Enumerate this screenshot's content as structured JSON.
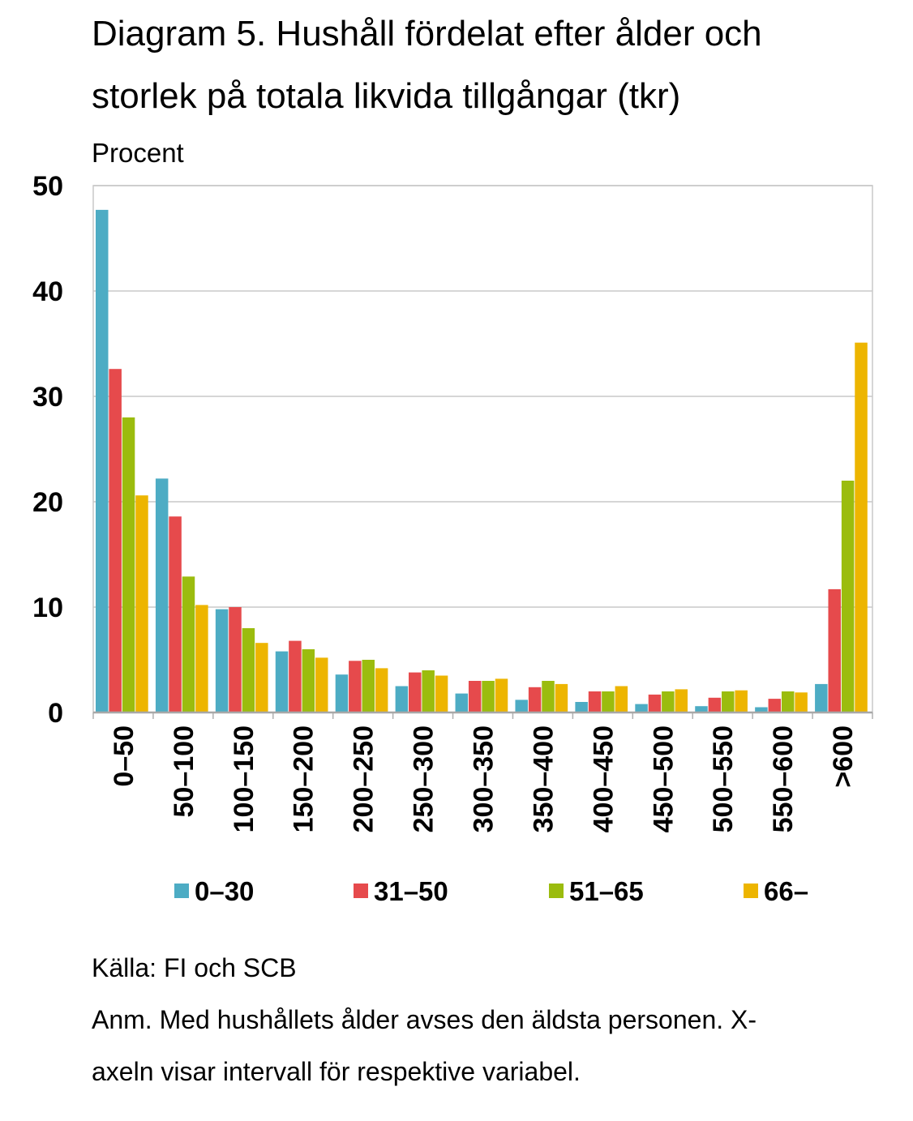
{
  "title_line1": "Diagram 5. Hushåll fördelat efter ålder och",
  "title_line2": "storlek på totala likvida tillgångar (tkr)",
  "source": "Källa: FI och SCB",
  "note_line1": "Anm. Med hushållets ålder avses den äldsta personen. X-",
  "note_line2": "axeln visar intervall för respektive variabel.",
  "chart_data": {
    "type": "bar",
    "title": "Diagram 5. Hushåll fördelat efter ålder och storlek på totala likvida tillgångar (tkr)",
    "ylabel": "Procent",
    "xlabel": "",
    "ylim": [
      0,
      50
    ],
    "yticks": [
      0,
      10,
      20,
      30,
      40,
      50
    ],
    "grid": true,
    "legend_position": "bottom",
    "categories": [
      "0–50",
      "50–100",
      "100–150",
      "150–200",
      "200–250",
      "250–300",
      "300–350",
      "350–400",
      "400–450",
      "450–500",
      "500–550",
      "550–600",
      ">600"
    ],
    "series": [
      {
        "name": "0–30",
        "color": "#4DACC4",
        "values": [
          47.7,
          22.2,
          9.8,
          5.8,
          3.6,
          2.5,
          1.8,
          1.2,
          1.0,
          0.8,
          0.6,
          0.5,
          2.7
        ]
      },
      {
        "name": "31–50",
        "color": "#E64A4C",
        "values": [
          32.6,
          18.6,
          10.0,
          6.8,
          4.9,
          3.8,
          3.0,
          2.4,
          2.0,
          1.7,
          1.4,
          1.3,
          11.7
        ]
      },
      {
        "name": "51–65",
        "color": "#9BBC0E",
        "values": [
          28.0,
          12.9,
          8.0,
          6.0,
          5.0,
          4.0,
          3.0,
          3.0,
          2.0,
          2.0,
          2.0,
          2.0,
          22.0
        ]
      },
      {
        "name": "66–",
        "color": "#EDB500",
        "values": [
          20.6,
          10.2,
          6.6,
          5.2,
          4.2,
          3.5,
          3.2,
          2.7,
          2.5,
          2.2,
          2.1,
          1.9,
          35.1
        ]
      }
    ]
  }
}
